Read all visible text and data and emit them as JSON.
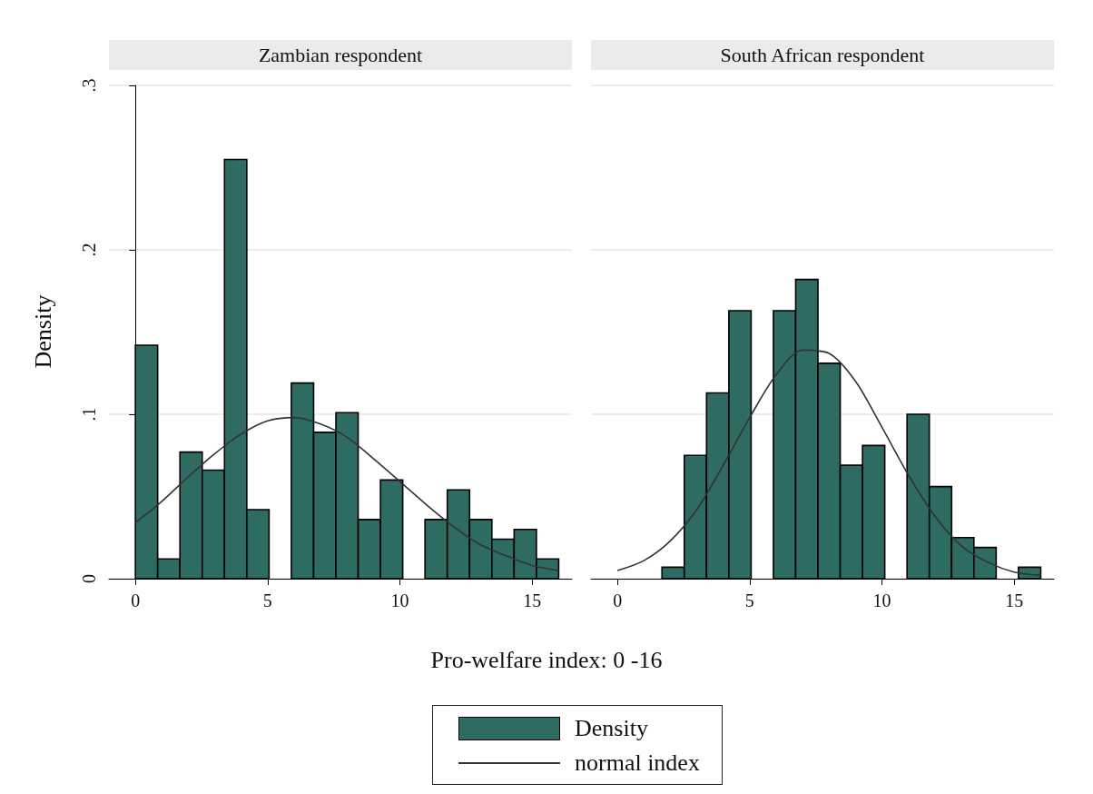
{
  "chart_data": [
    {
      "type": "histogram",
      "title": "Zambian respondent",
      "xlabel": "Pro-welfare index: 0 -16",
      "ylabel": "Density",
      "legend": "bottom",
      "grid": "y",
      "marker": "none",
      "line_style": "solid",
      "bins": [
        0,
        0.842,
        1.684,
        2.526,
        3.368,
        4.211,
        5.053,
        5.895,
        6.737,
        7.579,
        8.421,
        9.263,
        10.105,
        10.947,
        11.789,
        12.632,
        13.474,
        14.316,
        15.158,
        16
      ],
      "xlim": [
        -1,
        16.5
      ],
      "xticks": [
        0,
        5,
        10,
        15
      ],
      "ylim": [
        0,
        0.3
      ],
      "yticks": [
        {
          "value": 0,
          "label": "0"
        },
        {
          "value": 0.1,
          "label": ".1"
        },
        {
          "value": 0.2,
          "label": ".2"
        },
        {
          "value": 0.3,
          "label": ".3"
        }
      ],
      "series": [
        {
          "type": "histogram",
          "name": "Density",
          "color": "#2e6b62",
          "values": [
            0.142,
            0.012,
            0.077,
            0.066,
            0.255,
            0.042,
            0,
            0.119,
            0.089,
            0.101,
            0.036,
            0.06,
            0,
            0.036,
            0.054,
            0.036,
            0.024,
            0.03,
            0.012
          ]
        },
        {
          "type": "line",
          "name": "normal index",
          "color": "#333333",
          "x": [
            0,
            1,
            2,
            3,
            4,
            5,
            6,
            7,
            8,
            9,
            10,
            11,
            12,
            13,
            14,
            15,
            16
          ],
          "values": [
            0.034,
            0.047,
            0.062,
            0.076,
            0.088,
            0.096,
            0.098,
            0.094,
            0.086,
            0.073,
            0.059,
            0.045,
            0.032,
            0.021,
            0.014,
            0.008,
            0.005
          ]
        }
      ]
    },
    {
      "type": "histogram",
      "title": "South African respondent",
      "grid": "y",
      "marker": "none",
      "line_style": "solid",
      "tick_labels": "x",
      "bins": [
        0,
        0.842,
        1.684,
        2.526,
        3.368,
        4.211,
        5.053,
        5.895,
        6.737,
        7.579,
        8.421,
        9.263,
        10.105,
        10.947,
        11.789,
        12.632,
        13.474,
        14.316,
        15.158,
        16
      ],
      "xlim": [
        -1,
        16.5
      ],
      "xticks": [
        0,
        5,
        10,
        15
      ],
      "ylim": [
        0,
        0.3
      ],
      "yticks": [
        0,
        0.1,
        0.2,
        0.3
      ],
      "series": [
        {
          "type": "histogram",
          "color": "#2e6b62",
          "values": [
            0,
            0,
            0.007,
            0.075,
            0.113,
            0.163,
            0,
            0.163,
            0.182,
            0.131,
            0.069,
            0.081,
            0,
            0.1,
            0.056,
            0.025,
            0.019,
            0,
            0.007
          ]
        },
        {
          "type": "line",
          "color": "#333333",
          "x": [
            0,
            1,
            2,
            3,
            4,
            5,
            6,
            7,
            8,
            9,
            10,
            11,
            12,
            13,
            14,
            15,
            16
          ],
          "values": [
            0.005,
            0.011,
            0.023,
            0.042,
            0.069,
            0.098,
            0.124,
            0.139,
            0.137,
            0.12,
            0.092,
            0.063,
            0.038,
            0.02,
            0.01,
            0.004,
            0.002
          ]
        }
      ]
    }
  ]
}
